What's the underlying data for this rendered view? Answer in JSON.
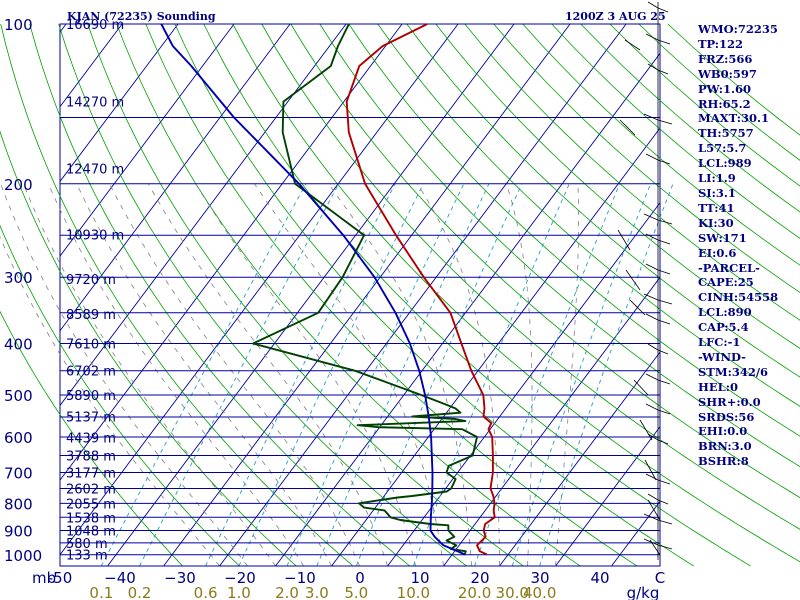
{
  "chart_data": {
    "type": "line",
    "title": "KJAN (72235) Sounding",
    "datetime": "1200Z  3 AUG 25",
    "y_axis_unit": "mb",
    "x_axis_unit": "C",
    "mixing_unit": "g/kg",
    "pressure_ticks": [
      100,
      200,
      300,
      400,
      500,
      600,
      700,
      800,
      900,
      1000
    ],
    "height_labels": [
      {
        "p": 100,
        "text": "16690 m"
      },
      {
        "p": 140,
        "text": "14270 m"
      },
      {
        "p": 187,
        "text": "12470 m"
      },
      {
        "p": 249,
        "text": "10930 m"
      },
      {
        "p": 302,
        "text": "9720 m"
      },
      {
        "p": 352,
        "text": "8589 m"
      },
      {
        "p": 400,
        "text": "7610 m"
      },
      {
        "p": 450,
        "text": "6702 m"
      },
      {
        "p": 500,
        "text": "5890 m"
      },
      {
        "p": 549,
        "text": "5137 m"
      },
      {
        "p": 601,
        "text": "4439 m"
      },
      {
        "p": 650,
        "text": "3788 m"
      },
      {
        "p": 700,
        "text": "3177 m"
      },
      {
        "p": 750,
        "text": "2602 m"
      },
      {
        "p": 800,
        "text": "2055 m"
      },
      {
        "p": 850,
        "text": "1538 m"
      },
      {
        "p": 900,
        "text": "1048 m"
      },
      {
        "p": 950,
        "text": "580 m"
      },
      {
        "p": 999,
        "text": "133 m"
      }
    ],
    "temperature_ticks": [
      -50,
      -40,
      -30,
      -20,
      -10,
      0,
      10,
      20,
      30,
      40
    ],
    "temperature_tick_labels": [
      "-50",
      "−40",
      "−30",
      "−20",
      "−10",
      "0",
      "10",
      "20",
      "30",
      "40"
    ],
    "mixing_ratio_ticks": [
      {
        "w": 0.1,
        "text": "0.1"
      },
      {
        "w": 0.2,
        "text": "0.2"
      },
      {
        "w": 0.6,
        "text": "0.6"
      },
      {
        "w": 1.0,
        "text": "1.0"
      },
      {
        "w": 2.0,
        "text": "2.0"
      },
      {
        "w": 3.0,
        "text": "3.0"
      },
      {
        "w": 5.0,
        "text": "5.0"
      },
      {
        "w": 10.0,
        "text": "10.0"
      },
      {
        "w": 20.0,
        "text": "20.0"
      },
      {
        "w": 30.0,
        "text": "30.0"
      },
      {
        "w": 40.0,
        "text": "40.0"
      }
    ],
    "series": [
      {
        "color": "#b00000",
        "points": [
          [
            999,
            26.2
          ],
          [
            985,
            24.5
          ],
          [
            960,
            23.2
          ],
          [
            925,
            23.6
          ],
          [
            900,
            22.4
          ],
          [
            875,
            21.8
          ],
          [
            850,
            22.6
          ],
          [
            825,
            21.5
          ],
          [
            800,
            20.7
          ],
          [
            775,
            19.5
          ],
          [
            750,
            18.0
          ],
          [
            700,
            16.3
          ],
          [
            650,
            14.0
          ],
          [
            600,
            11.4
          ],
          [
            580,
            9.7
          ],
          [
            565,
            9.4
          ],
          [
            549,
            7.1
          ],
          [
            530,
            6.2
          ],
          [
            500,
            4.2
          ],
          [
            450,
            -1.2
          ],
          [
            400,
            -6.6
          ],
          [
            350,
            -12.7
          ],
          [
            300,
            -22.2
          ],
          [
            250,
            -32.8
          ],
          [
            200,
            -45.2
          ],
          [
            160,
            -55.0
          ],
          [
            140,
            -59.5
          ],
          [
            120,
            -62.0
          ],
          [
            110,
            -60.5
          ],
          [
            100,
            -55.5
          ]
        ]
      },
      {
        "color": "#004000",
        "points": [
          [
            999,
            22.2
          ],
          [
            985,
            22.0
          ],
          [
            975,
            19.0
          ],
          [
            960,
            19.5
          ],
          [
            940,
            17.1
          ],
          [
            925,
            18.0
          ],
          [
            900,
            16.1
          ],
          [
            880,
            15.4
          ],
          [
            875,
            12.0
          ],
          [
            860,
            6.1
          ],
          [
            850,
            4.0
          ],
          [
            825,
            2.0
          ],
          [
            815,
            -2.0
          ],
          [
            800,
            -3.5
          ],
          [
            780,
            2.6
          ],
          [
            775,
            5.0
          ],
          [
            760,
            10.6
          ],
          [
            750,
            11.0
          ],
          [
            720,
            10.5
          ],
          [
            700,
            8.0
          ],
          [
            680,
            7.5
          ],
          [
            650,
            10.4
          ],
          [
            600,
            8.7
          ],
          [
            580,
            5.0
          ],
          [
            575,
            -10.2
          ],
          [
            570,
            -14.2
          ],
          [
            560,
            4.5
          ],
          [
            555,
            2.5
          ],
          [
            549,
            -5.6
          ],
          [
            540,
            2.5
          ],
          [
            530,
            1.0
          ],
          [
            520,
            -1.5
          ],
          [
            500,
            -6.9
          ],
          [
            450,
            -22.0
          ],
          [
            400,
            -43.8
          ],
          [
            350,
            -36.3
          ],
          [
            300,
            -36.7
          ],
          [
            250,
            -38.5
          ],
          [
            200,
            -57.7
          ],
          [
            160,
            -66.8
          ],
          [
            140,
            -70.8
          ],
          [
            120,
            -67.1
          ],
          [
            110,
            -68.5
          ],
          [
            100,
            -69.5
          ]
        ]
      },
      {
        "color": "#0000b0",
        "points": [
          [
            999,
            22.3
          ],
          [
            960,
            17.2
          ],
          [
            925,
            14.5
          ],
          [
            900,
            12.9
          ],
          [
            850,
            11.2
          ],
          [
            800,
            9.5
          ],
          [
            750,
            7.6
          ],
          [
            700,
            5.5
          ],
          [
            650,
            3.1
          ],
          [
            600,
            0.5
          ],
          [
            550,
            -2.6
          ],
          [
            500,
            -6.2
          ],
          [
            450,
            -10.5
          ],
          [
            400,
            -15.8
          ],
          [
            350,
            -22.5
          ],
          [
            300,
            -31.0
          ],
          [
            250,
            -42.2
          ],
          [
            200,
            -57.0
          ],
          [
            150,
            -77.5
          ],
          [
            120,
            -92.0
          ],
          [
            110,
            -98.0
          ],
          [
            100,
            -103.0
          ]
        ]
      }
    ]
  },
  "stats": [
    "WMO:72235",
    "TP:122",
    "FRZ:566",
    "WB0:597",
    "PW:1.60",
    "RH:65.2",
    "MAXT:30.1",
    "TH:5757",
    "L57:5.7",
    "LCL:989",
    "LI:1.9",
    "SI:3.1",
    "TT:41",
    "KI:30",
    "SW:171",
    "EI:0.6",
    "-PARCEL-",
    "CAPE:25",
    "CINH:54558",
    "LCL:890",
    "CAP:5.4",
    "LFC:-1",
    "-WIND-",
    "STM:342/6",
    "HEL:0",
    "SHR+:0.0",
    "SRDS:56",
    "EHI:0.0",
    "BRN:3.0",
    "BSHR:8"
  ],
  "colors": {
    "isobar": "#0000a0",
    "isotherm": "#0000a0",
    "dry_adiabat": "#00a000",
    "moist_adiabat": "#808080",
    "mixing_ratio": "#20a0c0",
    "temperature": "#b00000",
    "dewpoint": "#004000",
    "parcel": "#0000b0",
    "labels": "#000080",
    "mixing_labels": "#8b7a1a"
  }
}
